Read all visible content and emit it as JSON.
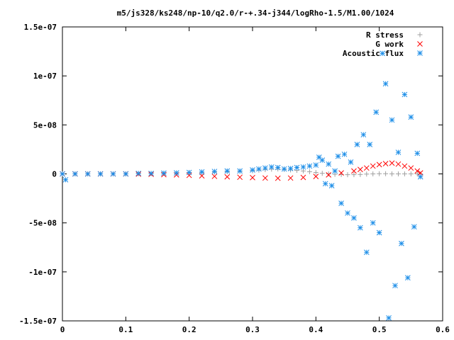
{
  "chart_data": {
    "type": "scatter",
    "title": "m5/js328/ks248/np-10/q2.0/r-+.34-j344/logRho-1.5/M1.00/1024",
    "xlim": [
      0,
      0.6
    ],
    "ylim": [
      -1.5e-07,
      1.5e-07
    ],
    "x_ticks": [
      {
        "value": 0,
        "label": "0"
      },
      {
        "value": 0.1,
        "label": "0.1"
      },
      {
        "value": 0.2,
        "label": "0.2"
      },
      {
        "value": 0.3,
        "label": "0.3"
      },
      {
        "value": 0.4,
        "label": "0.4"
      },
      {
        "value": 0.5,
        "label": "0.5"
      },
      {
        "value": 0.6,
        "label": "0.6"
      }
    ],
    "y_ticks": [
      {
        "value": 1.5e-07,
        "label": "1.5e-07"
      },
      {
        "value": 1e-07,
        "label": "1e-07"
      },
      {
        "value": 5e-08,
        "label": "5e-08"
      },
      {
        "value": 0,
        "label": "0"
      },
      {
        "value": -5e-08,
        "label": "-5e-08"
      },
      {
        "value": -1e-07,
        "label": "-1e-07"
      },
      {
        "value": -1.5e-07,
        "label": "-1.5e-07"
      }
    ],
    "legend_position": "top-right",
    "series": [
      {
        "name": "R stress",
        "marker": "plus",
        "color": "#a0a0a0",
        "x": [
          0,
          0.02,
          0.04,
          0.06,
          0.08,
          0.1,
          0.12,
          0.14,
          0.16,
          0.18,
          0.2,
          0.22,
          0.24,
          0.26,
          0.28,
          0.3,
          0.31,
          0.32,
          0.33,
          0.34,
          0.35,
          0.36,
          0.37,
          0.38,
          0.39,
          0.4,
          0.41,
          0.42,
          0.43,
          0.44,
          0.45,
          0.46,
          0.47,
          0.48,
          0.49,
          0.5,
          0.51,
          0.52,
          0.53,
          0.54,
          0.55,
          0.56,
          0.565
        ],
        "y": [
          0,
          0,
          0,
          0,
          0,
          0,
          2e-10,
          3e-10,
          5e-10,
          8e-10,
          1.2e-09,
          1.5e-09,
          1.8e-09,
          2.2e-09,
          2.6e-09,
          3.2e-09,
          3.8e-09,
          4.4e-09,
          4.8e-09,
          5e-09,
          4.6e-09,
          4e-09,
          3.6e-09,
          3e-09,
          2.2e-09,
          1.4e-09,
          6e-10,
          0,
          -4e-10,
          -6e-10,
          -8e-10,
          -8e-10,
          -6e-10,
          -2e-10,
          0,
          2e-10,
          2e-10,
          0,
          0,
          0,
          0,
          0,
          0
        ]
      },
      {
        "name": "G work",
        "marker": "cross",
        "color": "#ff0000",
        "x": [
          0,
          0.02,
          0.04,
          0.06,
          0.08,
          0.1,
          0.12,
          0.14,
          0.16,
          0.18,
          0.2,
          0.22,
          0.24,
          0.26,
          0.28,
          0.3,
          0.32,
          0.34,
          0.36,
          0.38,
          0.4,
          0.42,
          0.44,
          0.46,
          0.47,
          0.48,
          0.49,
          0.5,
          0.51,
          0.52,
          0.53,
          0.54,
          0.55,
          0.56,
          0.565
        ],
        "y": [
          0,
          0,
          0,
          0,
          0,
          0,
          -2e-10,
          -4e-10,
          -7e-10,
          -1e-09,
          -1.5e-09,
          -2e-09,
          -2.5e-09,
          -3e-09,
          -3.4e-09,
          -3.8e-09,
          -4.2e-09,
          -4.4e-09,
          -4.2e-09,
          -3.6e-09,
          -2.6e-09,
          -1e-09,
          1e-09,
          3e-09,
          4.5e-09,
          6e-09,
          8e-09,
          9.5e-09,
          1.05e-08,
          1.1e-08,
          1e-08,
          8e-09,
          6e-09,
          3e-09,
          1e-09
        ]
      },
      {
        "name": "Acoustic flux",
        "marker": "star",
        "color": "#1f8fe8",
        "x": [
          0,
          0.005,
          0.02,
          0.04,
          0.06,
          0.08,
          0.1,
          0.12,
          0.14,
          0.16,
          0.18,
          0.2,
          0.22,
          0.24,
          0.26,
          0.28,
          0.3,
          0.31,
          0.32,
          0.33,
          0.34,
          0.35,
          0.36,
          0.37,
          0.38,
          0.39,
          0.4,
          0.405,
          0.41,
          0.415,
          0.42,
          0.425,
          0.43,
          0.435,
          0.44,
          0.445,
          0.45,
          0.455,
          0.46,
          0.465,
          0.47,
          0.475,
          0.48,
          0.485,
          0.49,
          0.495,
          0.5,
          0.505,
          0.51,
          0.515,
          0.52,
          0.525,
          0.53,
          0.535,
          0.54,
          0.545,
          0.55,
          0.555,
          0.56,
          0.565
        ],
        "y": [
          0,
          -6e-09,
          0,
          0,
          0,
          0,
          0,
          5e-10,
          5e-10,
          8e-10,
          1e-09,
          1.5e-09,
          2e-09,
          2.5e-09,
          3e-09,
          3e-09,
          4e-09,
          5e-09,
          6e-09,
          7e-09,
          6.5e-09,
          5e-09,
          5.5e-09,
          6.5e-09,
          7e-09,
          8e-09,
          9e-09,
          1.7e-08,
          1.4e-08,
          -1e-08,
          1e-08,
          -1.2e-08,
          3e-09,
          1.8e-08,
          -3e-08,
          2e-08,
          -4e-08,
          1.2e-08,
          -4.5e-08,
          3e-08,
          -5.5e-08,
          4e-08,
          -8e-08,
          3e-08,
          -5e-08,
          6.3e-08,
          -6e-08,
          1.23e-07,
          9.2e-08,
          -1.47e-07,
          5.5e-08,
          -1.14e-07,
          2.2e-08,
          -7.1e-08,
          8.1e-08,
          -1.06e-07,
          5.8e-08,
          -5.4e-08,
          2.1e-08,
          -3e-09
        ]
      }
    ]
  }
}
